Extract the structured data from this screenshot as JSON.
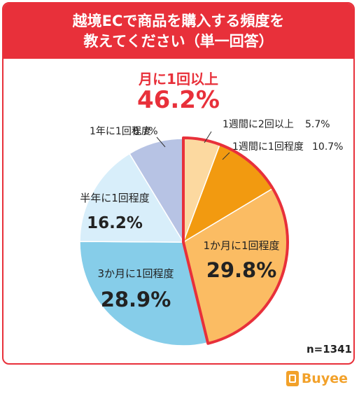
{
  "title_lines": [
    "越境ECで商品を購入する頻度を",
    "教えてください（単一回答）"
  ],
  "highlight": {
    "label": "月に1回以上",
    "value": "46.2%"
  },
  "sample_size": "n=1341",
  "logo": {
    "text": "Buyee"
  },
  "colors": {
    "accent_red": "#e8303a",
    "slice_colors": [
      "#fcd9a0",
      "#f29a10",
      "#fbbc63",
      "#86cde9",
      "#d8eefa",
      "#b7c3e4"
    ]
  },
  "chart_data": {
    "type": "pie",
    "title": "越境ECで商品を購入する頻度を教えてください（単一回答）",
    "categories": [
      "1週間に2回以上",
      "1週間に1回程度",
      "1か月に1回程度",
      "3か月に1回程度",
      "半年に1回程度",
      "1年に1回程度"
    ],
    "values": [
      5.7,
      10.7,
      29.8,
      28.9,
      16.2,
      8.7
    ],
    "labels": [
      "5.7%",
      "10.7%",
      "29.8%",
      "28.9%",
      "16.2%",
      "8.7%"
    ],
    "start_angle": "12 o'clock, clockwise",
    "highlighted_group": [
      "1週間に2回以上",
      "1週間に1回程度",
      "1か月に1回程度"
    ]
  }
}
